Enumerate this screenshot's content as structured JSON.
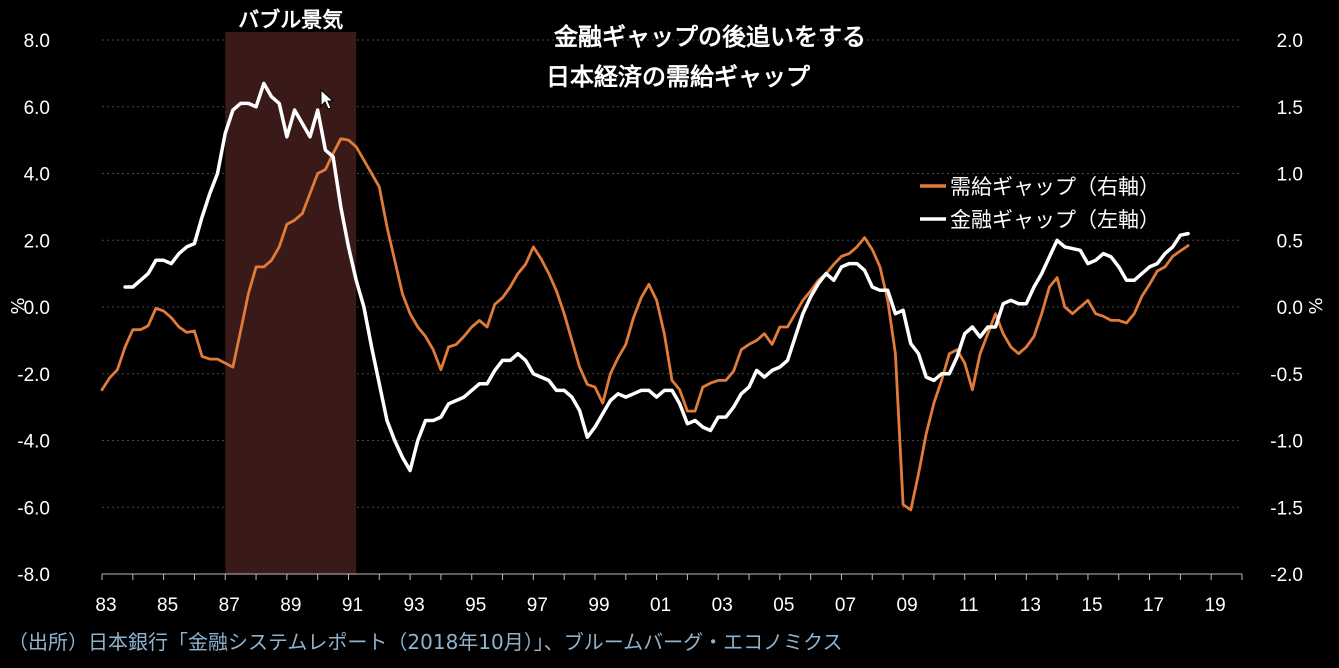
{
  "chart_data": {
    "type": "line",
    "title_line1": "金融ギャップの後追いをする",
    "title_line2": "日本経済の需給ギャップ",
    "shaded_region_label": "バブル景気",
    "shaded_region": [
      1987.0,
      1991.25
    ],
    "left_axis": {
      "unit": "%",
      "ylim": [
        -8.0,
        8.0
      ],
      "ticks": [
        "8.0",
        "6.0",
        "4.0",
        "2.0",
        "0.0",
        "-2.0",
        "-4.0",
        "-6.0",
        "-8.0"
      ]
    },
    "right_axis": {
      "unit": "%",
      "ylim": [
        -2.0,
        2.0
      ],
      "ticks": [
        "2.0",
        "1.5",
        "1.0",
        "0.5",
        "0.0",
        "-0.5",
        "-1.0",
        "-1.5",
        "-2.0"
      ]
    },
    "x_ticks": [
      "83",
      "85",
      "87",
      "89",
      "91",
      "93",
      "95",
      "97",
      "99",
      "01",
      "03",
      "05",
      "07",
      "09",
      "11",
      "13",
      "15",
      "17",
      "19"
    ],
    "x_tick_years": [
      1983,
      1985,
      1987,
      1989,
      1991,
      1993,
      1995,
      1997,
      1999,
      2001,
      2003,
      2005,
      2007,
      2009,
      2011,
      2013,
      2015,
      2017,
      2019
    ],
    "xlim": [
      1983,
      2020
    ],
    "grid": "horizontal",
    "legend_position": "right",
    "series": [
      {
        "name": "需給ギャップ（右軸）",
        "axis": "right",
        "color": "#e07b39",
        "points": [
          [
            1983.0,
            -0.62
          ],
          [
            1983.25,
            -0.53
          ],
          [
            1983.5,
            -0.47
          ],
          [
            1983.75,
            -0.3
          ],
          [
            1984.0,
            -0.17
          ],
          [
            1984.25,
            -0.17
          ],
          [
            1984.5,
            -0.14
          ],
          [
            1984.75,
            -0.01
          ],
          [
            1985.0,
            -0.03
          ],
          [
            1985.25,
            -0.08
          ],
          [
            1985.5,
            -0.15
          ],
          [
            1985.75,
            -0.19
          ],
          [
            1986.0,
            -0.18
          ],
          [
            1986.25,
            -0.37
          ],
          [
            1986.5,
            -0.39
          ],
          [
            1986.75,
            -0.39
          ],
          [
            1987.0,
            -0.42
          ],
          [
            1987.25,
            -0.45
          ],
          [
            1987.5,
            -0.18
          ],
          [
            1987.75,
            0.1
          ],
          [
            1988.0,
            0.3
          ],
          [
            1988.25,
            0.3
          ],
          [
            1988.5,
            0.35
          ],
          [
            1988.75,
            0.45
          ],
          [
            1989.0,
            0.62
          ],
          [
            1989.25,
            0.65
          ],
          [
            1989.5,
            0.7
          ],
          [
            1989.75,
            0.85
          ],
          [
            1990.0,
            1.0
          ],
          [
            1990.25,
            1.03
          ],
          [
            1990.5,
            1.15
          ],
          [
            1990.75,
            1.26
          ],
          [
            1991.0,
            1.25
          ],
          [
            1991.25,
            1.2
          ],
          [
            1991.5,
            1.1
          ],
          [
            1991.75,
            1.0
          ],
          [
            1992.0,
            0.9
          ],
          [
            1992.25,
            0.6
          ],
          [
            1992.5,
            0.35
          ],
          [
            1992.75,
            0.1
          ],
          [
            1993.0,
            -0.05
          ],
          [
            1993.25,
            -0.15
          ],
          [
            1993.5,
            -0.22
          ],
          [
            1993.75,
            -0.32
          ],
          [
            1994.0,
            -0.47
          ],
          [
            1994.25,
            -0.3
          ],
          [
            1994.5,
            -0.28
          ],
          [
            1994.75,
            -0.22
          ],
          [
            1995.0,
            -0.15
          ],
          [
            1995.25,
            -0.1
          ],
          [
            1995.5,
            -0.15
          ],
          [
            1995.75,
            0.02
          ],
          [
            1996.0,
            0.07
          ],
          [
            1996.25,
            0.15
          ],
          [
            1996.5,
            0.25
          ],
          [
            1996.75,
            0.32
          ],
          [
            1997.0,
            0.45
          ],
          [
            1997.25,
            0.36
          ],
          [
            1997.5,
            0.25
          ],
          [
            1997.75,
            0.12
          ],
          [
            1998.0,
            -0.05
          ],
          [
            1998.25,
            -0.25
          ],
          [
            1998.5,
            -0.45
          ],
          [
            1998.75,
            -0.58
          ],
          [
            1999.0,
            -0.6
          ],
          [
            1999.25,
            -0.72
          ],
          [
            1999.5,
            -0.5
          ],
          [
            1999.75,
            -0.38
          ],
          [
            2000.0,
            -0.28
          ],
          [
            2000.25,
            -0.08
          ],
          [
            2000.5,
            0.07
          ],
          [
            2000.75,
            0.17
          ],
          [
            2001.0,
            0.05
          ],
          [
            2001.25,
            -0.2
          ],
          [
            2001.5,
            -0.55
          ],
          [
            2001.75,
            -0.62
          ],
          [
            2002.0,
            -0.78
          ],
          [
            2002.25,
            -0.78
          ],
          [
            2002.5,
            -0.6
          ],
          [
            2002.75,
            -0.57
          ],
          [
            2003.0,
            -0.55
          ],
          [
            2003.25,
            -0.55
          ],
          [
            2003.5,
            -0.48
          ],
          [
            2003.75,
            -0.32
          ],
          [
            2004.0,
            -0.28
          ],
          [
            2004.25,
            -0.25
          ],
          [
            2004.5,
            -0.2
          ],
          [
            2004.75,
            -0.28
          ],
          [
            2005.0,
            -0.15
          ],
          [
            2005.25,
            -0.15
          ],
          [
            2005.5,
            -0.05
          ],
          [
            2005.75,
            0.05
          ],
          [
            2006.0,
            0.12
          ],
          [
            2006.25,
            0.2
          ],
          [
            2006.5,
            0.25
          ],
          [
            2006.75,
            0.32
          ],
          [
            2007.0,
            0.38
          ],
          [
            2007.25,
            0.4
          ],
          [
            2007.5,
            0.45
          ],
          [
            2007.75,
            0.52
          ],
          [
            2008.0,
            0.43
          ],
          [
            2008.25,
            0.3
          ],
          [
            2008.5,
            0.05
          ],
          [
            2008.75,
            -0.35
          ],
          [
            2009.0,
            -1.48
          ],
          [
            2009.25,
            -1.52
          ],
          [
            2009.5,
            -1.25
          ],
          [
            2009.75,
            -0.95
          ],
          [
            2010.0,
            -0.72
          ],
          [
            2010.25,
            -0.55
          ],
          [
            2010.5,
            -0.35
          ],
          [
            2010.75,
            -0.32
          ],
          [
            2011.0,
            -0.42
          ],
          [
            2011.25,
            -0.62
          ],
          [
            2011.5,
            -0.35
          ],
          [
            2011.75,
            -0.2
          ],
          [
            2012.0,
            -0.05
          ],
          [
            2012.25,
            -0.2
          ],
          [
            2012.5,
            -0.3
          ],
          [
            2012.75,
            -0.35
          ],
          [
            2013.0,
            -0.3
          ],
          [
            2013.25,
            -0.22
          ],
          [
            2013.5,
            -0.05
          ],
          [
            2013.75,
            0.15
          ],
          [
            2014.0,
            0.22
          ],
          [
            2014.25,
            0.0
          ],
          [
            2014.5,
            -0.05
          ],
          [
            2014.75,
            0.0
          ],
          [
            2015.0,
            0.05
          ],
          [
            2015.25,
            -0.05
          ],
          [
            2015.5,
            -0.07
          ],
          [
            2015.75,
            -0.1
          ],
          [
            2016.0,
            -0.1
          ],
          [
            2016.25,
            -0.12
          ],
          [
            2016.5,
            -0.05
          ],
          [
            2016.75,
            0.08
          ],
          [
            2017.0,
            0.17
          ],
          [
            2017.25,
            0.27
          ],
          [
            2017.5,
            0.3
          ],
          [
            2017.75,
            0.38
          ],
          [
            2018.0,
            0.42
          ],
          [
            2018.25,
            0.46
          ]
        ]
      },
      {
        "name": "金融ギャップ（左軸）",
        "axis": "left",
        "color": "#ffffff",
        "points": [
          [
            1983.75,
            0.6
          ],
          [
            1984.0,
            0.6
          ],
          [
            1984.25,
            0.8
          ],
          [
            1984.5,
            1.0
          ],
          [
            1984.75,
            1.4
          ],
          [
            1985.0,
            1.4
          ],
          [
            1985.25,
            1.3
          ],
          [
            1985.5,
            1.6
          ],
          [
            1985.75,
            1.8
          ],
          [
            1986.0,
            1.9
          ],
          [
            1986.25,
            2.7
          ],
          [
            1986.5,
            3.4
          ],
          [
            1986.75,
            4.0
          ],
          [
            1987.0,
            5.2
          ],
          [
            1987.25,
            5.9
          ],
          [
            1987.5,
            6.1
          ],
          [
            1987.75,
            6.1
          ],
          [
            1988.0,
            6.0
          ],
          [
            1988.25,
            6.7
          ],
          [
            1988.5,
            6.3
          ],
          [
            1988.75,
            6.1
          ],
          [
            1989.0,
            5.1
          ],
          [
            1989.25,
            5.9
          ],
          [
            1989.5,
            5.5
          ],
          [
            1989.75,
            5.1
          ],
          [
            1990.0,
            5.9
          ],
          [
            1990.25,
            4.7
          ],
          [
            1990.5,
            4.5
          ],
          [
            1990.75,
            3.0
          ],
          [
            1991.0,
            1.8
          ],
          [
            1991.25,
            0.8
          ],
          [
            1991.5,
            0.0
          ],
          [
            1991.75,
            -1.2
          ],
          [
            1992.0,
            -2.3
          ],
          [
            1992.25,
            -3.4
          ],
          [
            1992.5,
            -4.0
          ],
          [
            1992.75,
            -4.5
          ],
          [
            1993.0,
            -4.9
          ],
          [
            1993.25,
            -4.0
          ],
          [
            1993.5,
            -3.4
          ],
          [
            1993.75,
            -3.4
          ],
          [
            1994.0,
            -3.3
          ],
          [
            1994.25,
            -2.9
          ],
          [
            1994.5,
            -2.8
          ],
          [
            1994.75,
            -2.7
          ],
          [
            1995.0,
            -2.5
          ],
          [
            1995.25,
            -2.3
          ],
          [
            1995.5,
            -2.3
          ],
          [
            1995.75,
            -1.9
          ],
          [
            1996.0,
            -1.6
          ],
          [
            1996.25,
            -1.6
          ],
          [
            1996.5,
            -1.4
          ],
          [
            1996.75,
            -1.6
          ],
          [
            1997.0,
            -2.0
          ],
          [
            1997.25,
            -2.1
          ],
          [
            1997.5,
            -2.2
          ],
          [
            1997.75,
            -2.5
          ],
          [
            1998.0,
            -2.5
          ],
          [
            1998.25,
            -2.7
          ],
          [
            1998.5,
            -3.1
          ],
          [
            1998.75,
            -3.9
          ],
          [
            1999.0,
            -3.6
          ],
          [
            1999.25,
            -3.2
          ],
          [
            1999.5,
            -2.8
          ],
          [
            1999.75,
            -2.6
          ],
          [
            2000.0,
            -2.7
          ],
          [
            2000.25,
            -2.6
          ],
          [
            2000.5,
            -2.5
          ],
          [
            2000.75,
            -2.5
          ],
          [
            2001.0,
            -2.7
          ],
          [
            2001.25,
            -2.5
          ],
          [
            2001.5,
            -2.5
          ],
          [
            2001.75,
            -2.9
          ],
          [
            2002.0,
            -3.5
          ],
          [
            2002.25,
            -3.4
          ],
          [
            2002.5,
            -3.6
          ],
          [
            2002.75,
            -3.7
          ],
          [
            2003.0,
            -3.3
          ],
          [
            2003.25,
            -3.3
          ],
          [
            2003.5,
            -3.0
          ],
          [
            2003.75,
            -2.6
          ],
          [
            2004.0,
            -2.4
          ],
          [
            2004.25,
            -1.9
          ],
          [
            2004.5,
            -2.1
          ],
          [
            2004.75,
            -1.9
          ],
          [
            2005.0,
            -1.8
          ],
          [
            2005.25,
            -1.6
          ],
          [
            2005.5,
            -0.9
          ],
          [
            2005.75,
            -0.2
          ],
          [
            2006.0,
            0.3
          ],
          [
            2006.25,
            0.7
          ],
          [
            2006.5,
            1.0
          ],
          [
            2006.75,
            0.8
          ],
          [
            2007.0,
            1.2
          ],
          [
            2007.25,
            1.3
          ],
          [
            2007.5,
            1.3
          ],
          [
            2007.75,
            1.1
          ],
          [
            2008.0,
            0.6
          ],
          [
            2008.25,
            0.5
          ],
          [
            2008.5,
            0.5
          ],
          [
            2008.75,
            -0.2
          ],
          [
            2009.0,
            -0.1
          ],
          [
            2009.25,
            -1.1
          ],
          [
            2009.5,
            -1.4
          ],
          [
            2009.75,
            -2.1
          ],
          [
            2010.0,
            -2.2
          ],
          [
            2010.25,
            -2.0
          ],
          [
            2010.5,
            -2.0
          ],
          [
            2010.75,
            -1.5
          ],
          [
            2011.0,
            -0.8
          ],
          [
            2011.25,
            -0.6
          ],
          [
            2011.5,
            -0.9
          ],
          [
            2011.75,
            -0.6
          ],
          [
            2012.0,
            -0.6
          ],
          [
            2012.25,
            0.1
          ],
          [
            2012.5,
            0.2
          ],
          [
            2012.75,
            0.1
          ],
          [
            2013.0,
            0.1
          ],
          [
            2013.25,
            0.6
          ],
          [
            2013.5,
            1.0
          ],
          [
            2013.75,
            1.5
          ],
          [
            2014.0,
            2.0
          ],
          [
            2014.25,
            1.8
          ],
          [
            2014.5,
            1.75
          ],
          [
            2014.75,
            1.7
          ],
          [
            2015.0,
            1.3
          ],
          [
            2015.25,
            1.4
          ],
          [
            2015.5,
            1.6
          ],
          [
            2015.75,
            1.5
          ],
          [
            2016.0,
            1.2
          ],
          [
            2016.25,
            0.8
          ],
          [
            2016.5,
            0.8
          ],
          [
            2016.75,
            1.0
          ],
          [
            2017.0,
            1.2
          ],
          [
            2017.25,
            1.3
          ],
          [
            2017.5,
            1.6
          ],
          [
            2017.75,
            1.8
          ],
          [
            2018.0,
            2.15
          ],
          [
            2018.25,
            2.2
          ]
        ]
      }
    ]
  },
  "source_note": "（出所）日本銀行「金融システムレポート（2018年10月）」、ブルームバーグ・エコノミクス"
}
